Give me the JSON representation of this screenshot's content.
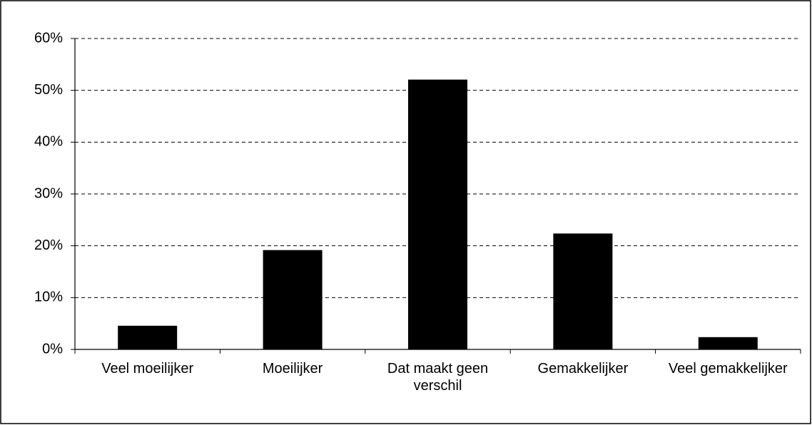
{
  "chart_data": {
    "type": "bar",
    "categories": [
      "Veel moeilijker",
      "Moeilijker",
      "Dat maakt geen verschil",
      "Gemakkelijker",
      "Veel gemakkelijker"
    ],
    "values": [
      4.5,
      19.1,
      52.0,
      22.3,
      2.3
    ],
    "color": "#000000",
    "ylim": [
      0,
      60
    ],
    "yticks": [
      {
        "value": 0,
        "label": "0%"
      },
      {
        "value": 10,
        "label": "10%"
      },
      {
        "value": 20,
        "label": "20%"
      },
      {
        "value": 30,
        "label": "30%"
      },
      {
        "value": 40,
        "label": "40%"
      },
      {
        "value": 50,
        "label": "50%"
      },
      {
        "value": 60,
        "label": "60%"
      }
    ],
    "grid": true
  }
}
